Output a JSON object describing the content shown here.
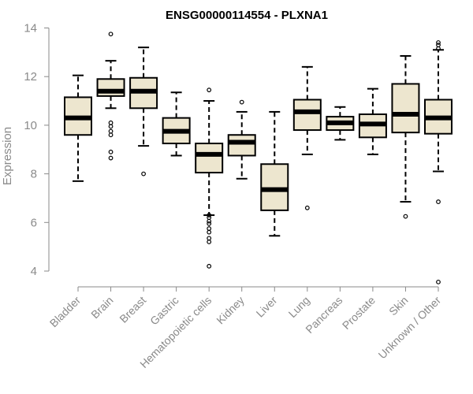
{
  "chart_data": {
    "type": "boxplot",
    "title": "ENSG00000114554 - PLXNA1",
    "xlabel": "",
    "ylabel": "Expression",
    "ylim": [
      3.4,
      14
    ],
    "yticks": [
      4,
      6,
      8,
      10,
      12,
      14
    ],
    "box_fill": "#ede6cf",
    "categories": [
      "Bladder",
      "Brain",
      "Breast",
      "Gastric",
      "Hematopoietic cells",
      "Kidney",
      "Liver",
      "Lung",
      "Pancreas",
      "Prostate",
      "Skin",
      "Unknown / Other"
    ],
    "series": [
      {
        "name": "Bladder",
        "whisker_low": 7.7,
        "q1": 9.6,
        "median": 10.3,
        "q3": 11.15,
        "whisker_high": 12.05,
        "outliers": []
      },
      {
        "name": "Brain",
        "whisker_low": 10.7,
        "q1": 11.2,
        "median": 11.4,
        "q3": 11.9,
        "whisker_high": 12.65,
        "outliers": [
          13.75,
          10.1,
          9.95,
          9.75,
          9.6,
          8.9,
          8.65
        ]
      },
      {
        "name": "Breast",
        "whisker_low": 9.15,
        "q1": 10.7,
        "median": 11.4,
        "q3": 11.95,
        "whisker_high": 13.2,
        "outliers": [
          8.0
        ]
      },
      {
        "name": "Gastric",
        "whisker_low": 8.75,
        "q1": 9.25,
        "median": 9.75,
        "q3": 10.3,
        "whisker_high": 11.35,
        "outliers": []
      },
      {
        "name": "Hematopoietic cells",
        "whisker_low": 6.3,
        "q1": 8.05,
        "median": 8.8,
        "q3": 9.25,
        "whisker_high": 11.0,
        "outliers": [
          11.45,
          6.3,
          6.2,
          6.05,
          5.95,
          5.75,
          5.6,
          5.35,
          5.2,
          4.2
        ]
      },
      {
        "name": "Kidney",
        "whisker_low": 7.8,
        "q1": 8.75,
        "median": 9.3,
        "q3": 9.6,
        "whisker_high": 10.55,
        "outliers": [
          10.95
        ]
      },
      {
        "name": "Liver",
        "whisker_low": 5.45,
        "q1": 6.5,
        "median": 7.35,
        "q3": 8.4,
        "whisker_high": 10.55,
        "outliers": []
      },
      {
        "name": "Lung",
        "whisker_low": 8.8,
        "q1": 9.8,
        "median": 10.55,
        "q3": 11.05,
        "whisker_high": 12.4,
        "outliers": [
          6.6
        ]
      },
      {
        "name": "Pancreas",
        "whisker_low": 9.4,
        "q1": 9.8,
        "median": 10.1,
        "q3": 10.35,
        "whisker_high": 10.75,
        "outliers": []
      },
      {
        "name": "Prostate",
        "whisker_low": 8.8,
        "q1": 9.5,
        "median": 10.05,
        "q3": 10.45,
        "whisker_high": 11.5,
        "outliers": []
      },
      {
        "name": "Skin",
        "whisker_low": 6.85,
        "q1": 9.7,
        "median": 10.45,
        "q3": 11.7,
        "whisker_high": 12.85,
        "outliers": [
          6.25
        ]
      },
      {
        "name": "Unknown / Other",
        "whisker_low": 8.1,
        "q1": 9.65,
        "median": 10.3,
        "q3": 11.05,
        "whisker_high": 13.1,
        "outliers": [
          13.4,
          13.3,
          13.15,
          6.85,
          3.55
        ]
      }
    ]
  }
}
